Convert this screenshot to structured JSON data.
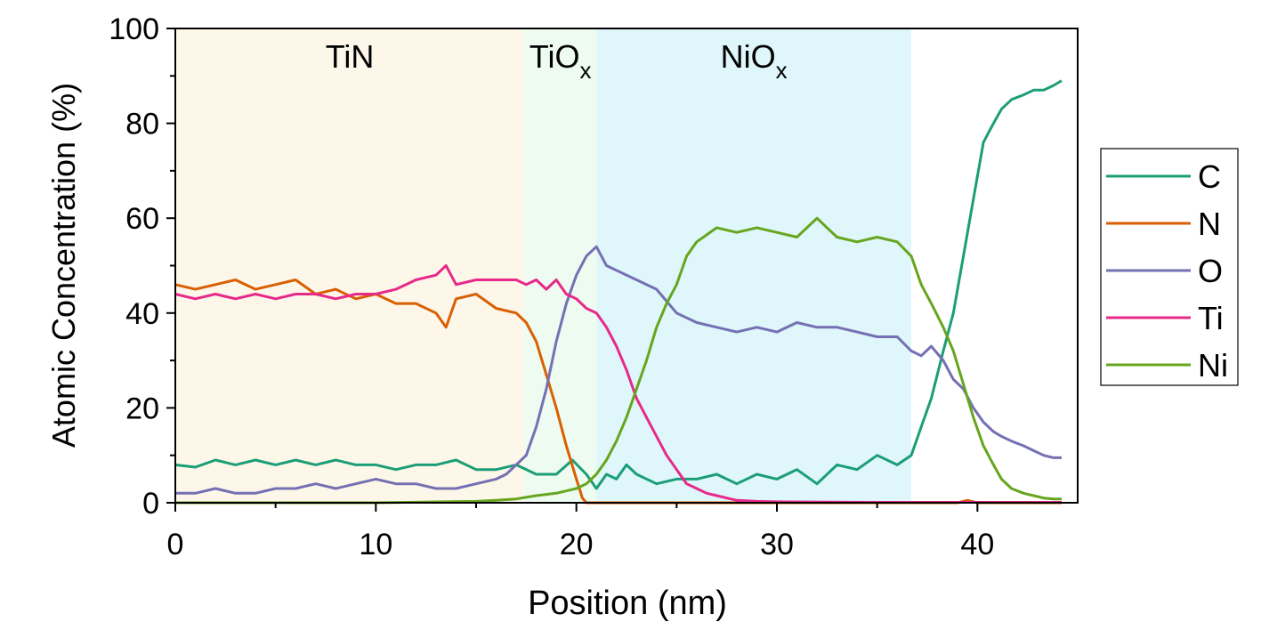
{
  "chart_data": {
    "type": "line",
    "xlabel": "Position (nm)",
    "ylabel": "Atomic Concentration (%)",
    "xlim": [
      0,
      45
    ],
    "ylim": [
      0,
      100
    ],
    "xticks": [
      "0",
      "10",
      "20",
      "30",
      "40"
    ],
    "yticks": [
      "0",
      "20",
      "40",
      "60",
      "80",
      "100"
    ],
    "grid": false,
    "legend_position": "right",
    "regions": [
      {
        "label": "TiN",
        "sub": "",
        "x0": 0,
        "x1": 17.4,
        "color": "#fdf7ea"
      },
      {
        "label": "TiO",
        "sub": "x",
        "x0": 17.4,
        "x1": 21.0,
        "color": "#eefbf0"
      },
      {
        "label": "NiO",
        "sub": "x",
        "x0": 21.0,
        "x1": 36.7,
        "color": "#dff6fa"
      }
    ],
    "series": [
      {
        "name": "C",
        "color": "#1b9e77",
        "x": [
          0,
          1,
          2,
          3,
          4,
          5,
          6,
          7,
          8,
          9,
          10,
          11,
          12,
          13,
          14,
          15,
          16,
          17,
          18,
          19,
          19.8,
          20.5,
          21,
          21.5,
          22,
          22.5,
          23,
          24,
          25,
          26,
          27,
          28,
          29,
          30,
          31,
          32,
          33,
          34,
          35,
          36,
          36.7,
          37.2,
          37.7,
          38.3,
          38.8,
          39.3,
          39.8,
          40.3,
          40.8,
          41.2,
          41.7,
          42.3,
          42.8,
          43.3,
          43.8,
          44.2
        ],
        "values": [
          8,
          7.5,
          9,
          8,
          9,
          8,
          9,
          8,
          9,
          8,
          8,
          7,
          8,
          8,
          9,
          7,
          7,
          8,
          6,
          6,
          9,
          6,
          3,
          6,
          5,
          8,
          6,
          4,
          5,
          5,
          6,
          4,
          6,
          5,
          7,
          4,
          8,
          7,
          10,
          8,
          10,
          16,
          22,
          32,
          40,
          52,
          64,
          76,
          80,
          83,
          85,
          86,
          87,
          87,
          88,
          89
        ]
      },
      {
        "name": "N",
        "color": "#d95f02",
        "x": [
          0,
          1,
          2,
          3,
          4,
          5,
          6,
          7,
          8,
          9,
          10,
          11,
          12,
          13,
          13.5,
          14,
          15,
          16,
          17,
          17.5,
          18,
          18.5,
          19,
          19.5,
          20,
          20.3,
          20.5,
          21,
          25,
          30,
          35,
          39,
          39.5,
          40,
          44.2
        ],
        "values": [
          46,
          45,
          46,
          47,
          45,
          46,
          47,
          44,
          45,
          43,
          44,
          42,
          42,
          40,
          37,
          43,
          44,
          41,
          40,
          38,
          34,
          27,
          20,
          12,
          5,
          1,
          0,
          0,
          0,
          0,
          0,
          0,
          0.5,
          0,
          0
        ]
      },
      {
        "name": "O",
        "color": "#7570b3",
        "x": [
          0,
          1,
          2,
          3,
          4,
          5,
          6,
          7,
          8,
          9,
          10,
          11,
          12,
          13,
          14,
          15,
          16,
          16.5,
          17,
          17.5,
          18,
          18.5,
          19,
          19.5,
          20,
          20.5,
          21,
          21.5,
          22,
          23,
          24,
          25,
          26,
          27,
          28,
          29,
          30,
          31,
          32,
          33,
          34,
          35,
          36,
          36.7,
          37.2,
          37.7,
          38.3,
          38.8,
          39.3,
          39.8,
          40.3,
          40.8,
          41.2,
          41.7,
          42.3,
          42.8,
          43.3,
          43.8,
          44.2
        ],
        "values": [
          2,
          2,
          3,
          2,
          2,
          3,
          3,
          4,
          3,
          4,
          5,
          4,
          4,
          3,
          3,
          4,
          5,
          6,
          8,
          10,
          16,
          24,
          34,
          42,
          48,
          52,
          54,
          50,
          49,
          47,
          45,
          40,
          38,
          37,
          36,
          37,
          36,
          38,
          37,
          37,
          36,
          35,
          35,
          32,
          31,
          33,
          30,
          26,
          24,
          20,
          17,
          15,
          14,
          13,
          12,
          11,
          10,
          9.5,
          9.5
        ]
      },
      {
        "name": "Ti",
        "color": "#e7298a",
        "x": [
          0,
          1,
          2,
          3,
          4,
          5,
          6,
          7,
          8,
          9,
          10,
          11,
          12,
          13,
          13.5,
          14,
          15,
          16,
          17,
          17.5,
          18,
          18.5,
          19,
          19.5,
          20,
          20.5,
          21,
          21.5,
          22,
          22.5,
          23,
          23.5,
          24,
          24.5,
          25,
          25.5,
          26,
          26.5,
          27,
          27.5,
          28,
          29,
          30,
          35,
          40,
          44.2
        ],
        "values": [
          44,
          43,
          44,
          43,
          44,
          43,
          44,
          44,
          43,
          44,
          44,
          45,
          47,
          48,
          50,
          46,
          47,
          47,
          47,
          46,
          47,
          45,
          47,
          44,
          43,
          41,
          40,
          37,
          33,
          28,
          22,
          18,
          14,
          10,
          7,
          4,
          3,
          2,
          1.5,
          1,
          0.5,
          0.3,
          0.2,
          0.1,
          0.1,
          0.1
        ]
      },
      {
        "name": "Ni",
        "color": "#66a61e",
        "x": [
          0,
          5,
          10,
          15,
          16,
          17,
          18,
          19,
          20,
          20.5,
          21,
          21.5,
          22,
          22.5,
          23,
          23.5,
          24,
          24.5,
          25,
          25.5,
          26,
          27,
          28,
          29,
          30,
          31,
          32,
          32.5,
          33,
          34,
          35,
          36,
          36.7,
          37.2,
          37.7,
          38.3,
          38.8,
          39.3,
          39.8,
          40.3,
          40.8,
          41.2,
          41.7,
          42.3,
          42.8,
          43.3,
          43.8,
          44.2
        ],
        "values": [
          0,
          0,
          0,
          0.3,
          0.5,
          0.8,
          1.5,
          2,
          3,
          4,
          6,
          9,
          13,
          18,
          24,
          30,
          37,
          42,
          46,
          52,
          55,
          58,
          57,
          58,
          57,
          56,
          60,
          58,
          56,
          55,
          56,
          55,
          52,
          46,
          42,
          37,
          32,
          25,
          18,
          12,
          8,
          5,
          3,
          2,
          1.5,
          1,
          0.8,
          0.8
        ]
      }
    ]
  }
}
